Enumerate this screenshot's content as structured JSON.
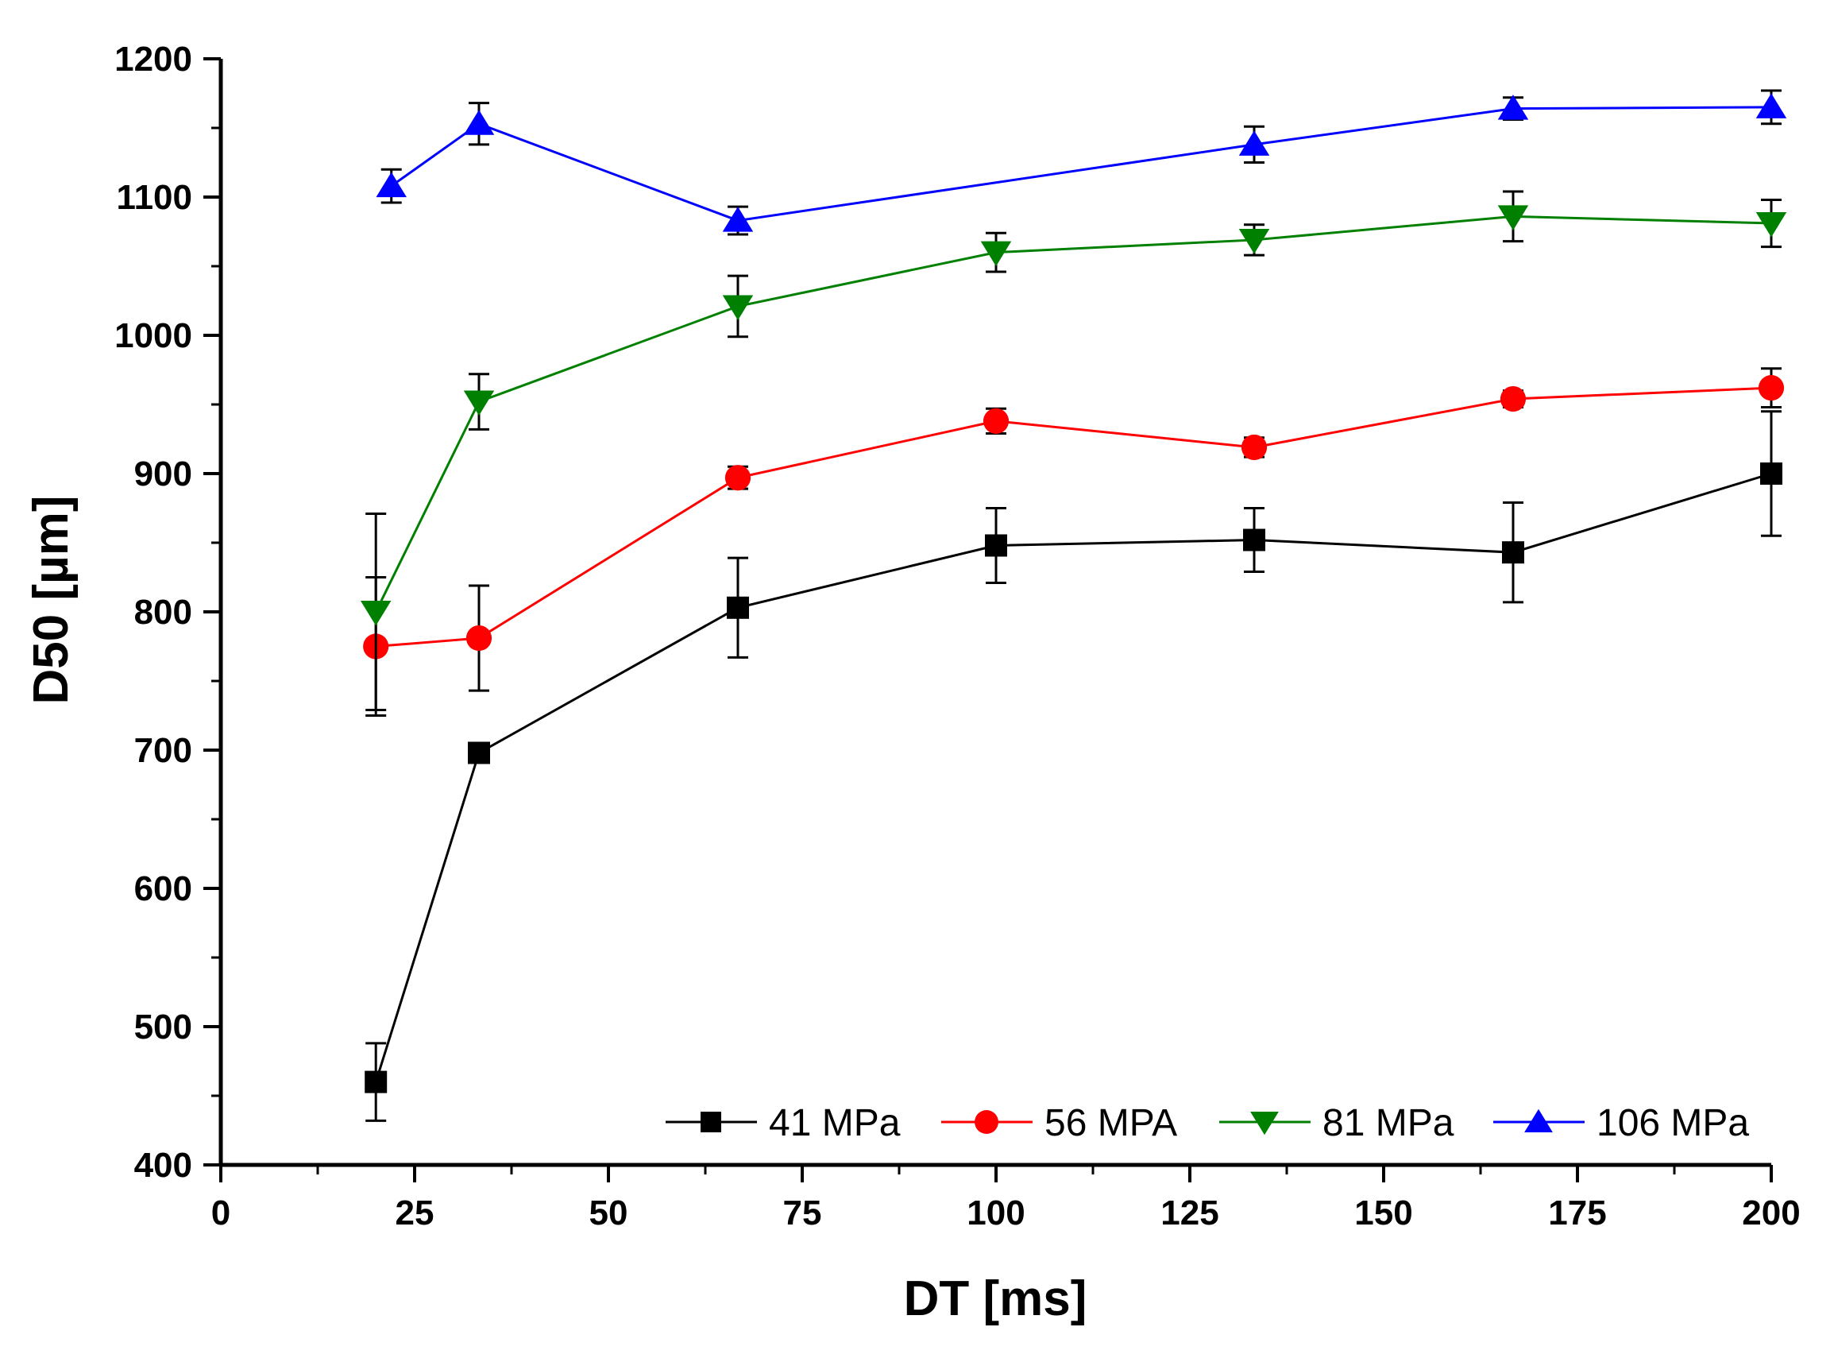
{
  "chart_data": {
    "type": "line",
    "title": "",
    "xlabel": "DT [ms]",
    "ylabel": "D50 [µm]",
    "xlim": [
      0,
      200
    ],
    "ylim": [
      400,
      1200
    ],
    "xticks": [
      0,
      25,
      50,
      75,
      100,
      125,
      150,
      175,
      200
    ],
    "yticks": [
      400,
      500,
      600,
      700,
      800,
      900,
      1000,
      1100,
      1200
    ],
    "xtick_labels": [
      "0",
      "25",
      "50",
      "75",
      "100",
      "125",
      "150",
      "175",
      "200"
    ],
    "ytick_labels": [
      "400",
      "500",
      "600",
      "700",
      "800",
      "900",
      "1000",
      "1100",
      "1200"
    ],
    "grid": false,
    "legend_position": "bottom-right inside",
    "series": [
      {
        "name": "41 MPa",
        "color": "#000000",
        "marker": "square",
        "x": [
          20,
          33.3,
          66.7,
          100,
          133.3,
          166.7,
          200
        ],
        "y": [
          460,
          698,
          803,
          848,
          852,
          843,
          900
        ],
        "err": [
          28,
          4,
          36,
          27,
          23,
          36,
          45
        ]
      },
      {
        "name": "56 MPA",
        "color": "#ff0000",
        "marker": "circle",
        "x": [
          20,
          33.3,
          66.7,
          100,
          133.3,
          166.7,
          200
        ],
        "y": [
          775,
          781,
          897,
          938,
          919,
          954,
          962
        ],
        "err": [
          50,
          38,
          8,
          9,
          7,
          6,
          14
        ]
      },
      {
        "name": "81 MPa",
        "color": "#008000",
        "marker": "triangle-down",
        "x": [
          20,
          33.3,
          66.7,
          100,
          133.3,
          166.7,
          200
        ],
        "y": [
          800,
          952,
          1021,
          1060,
          1069,
          1086,
          1081
        ],
        "err": [
          71,
          20,
          22,
          14,
          11,
          18,
          17
        ]
      },
      {
        "name": "106 MPa",
        "color": "#0000ff",
        "marker": "triangle-up",
        "x": [
          22,
          33.3,
          66.7,
          133.3,
          166.7,
          200
        ],
        "y": [
          1108,
          1153,
          1083,
          1138,
          1164,
          1165
        ],
        "err": [
          12,
          15,
          10,
          13,
          8,
          12
        ]
      }
    ]
  }
}
